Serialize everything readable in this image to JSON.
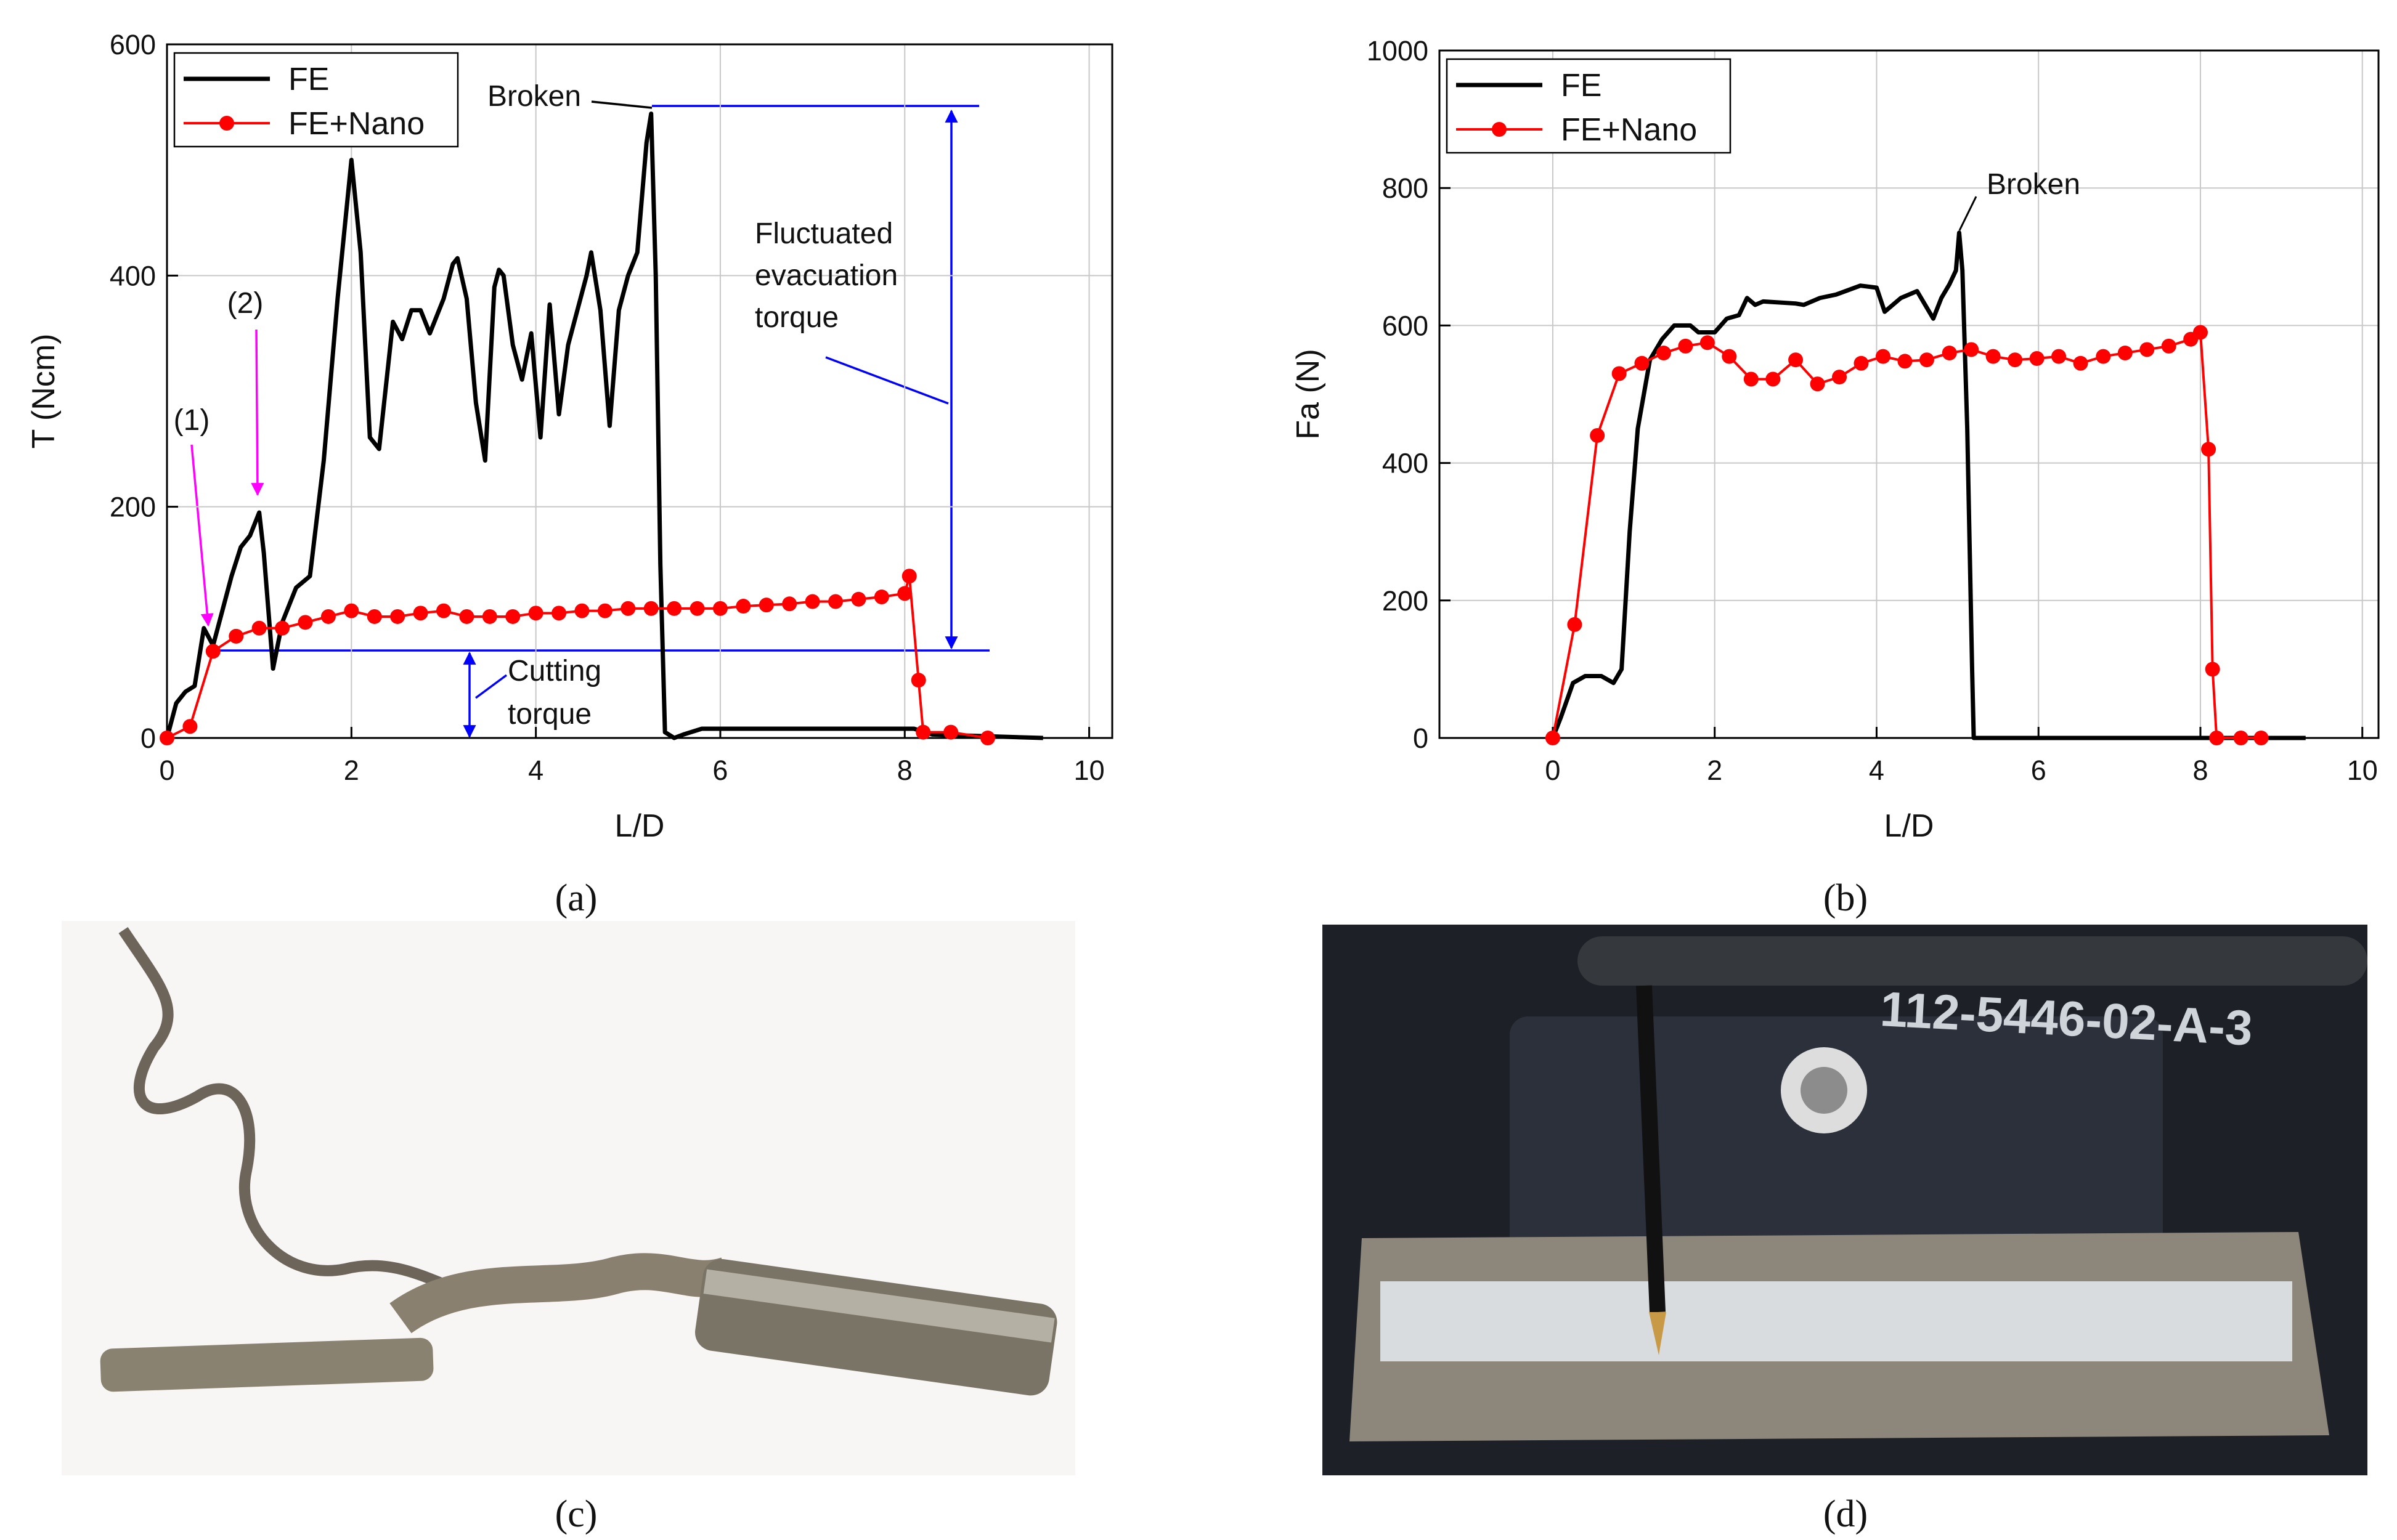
{
  "chart_data": [
    {
      "type": "line",
      "x_label": "L/D",
      "y_label": "T (Ncm)",
      "xlim": [
        0,
        10.25
      ],
      "xticks": [
        0,
        2,
        4,
        6,
        8,
        10
      ],
      "ylim": [
        0,
        600
      ],
      "yticks": [
        0,
        200,
        400,
        600
      ],
      "grid": true,
      "legend": "upper left",
      "annotations": [
        [
          "Broken"
        ],
        [
          "Fluctuated",
          "evacuation",
          "torque"
        ],
        [
          "Cutting",
          "torque"
        ],
        [
          "(1)"
        ],
        [
          "(2)"
        ]
      ],
      "series": [
        {
          "name": "FE",
          "color": "#000000",
          "marker": false,
          "x": [
            0,
            0.1,
            0.2,
            0.3,
            0.4,
            0.5,
            0.6,
            0.7,
            0.8,
            0.9,
            1.0,
            1.05,
            1.15,
            1.25,
            1.4,
            1.55,
            1.7,
            1.85,
            2.0,
            2.1,
            2.2,
            2.3,
            2.45,
            2.55,
            2.65,
            2.75,
            2.85,
            3.0,
            3.1,
            3.15,
            3.25,
            3.35,
            3.45,
            3.55,
            3.6,
            3.65,
            3.75,
            3.85,
            3.95,
            4.05,
            4.15,
            4.25,
            4.35,
            4.45,
            4.55,
            4.6,
            4.7,
            4.8,
            4.9,
            5.0,
            5.1,
            5.2,
            5.25,
            5.3,
            5.35,
            5.4,
            5.5,
            5.6,
            5.8,
            6,
            8.1,
            8.3,
            9.5
          ],
          "values": [
            0,
            30,
            40,
            45,
            95,
            80,
            110,
            140,
            165,
            175,
            195,
            160,
            60,
            100,
            130,
            140,
            240,
            380,
            500,
            420,
            260,
            250,
            360,
            345,
            370,
            370,
            350,
            380,
            410,
            415,
            380,
            290,
            240,
            390,
            405,
            400,
            340,
            310,
            350,
            260,
            375,
            280,
            340,
            370,
            400,
            420,
            370,
            270,
            370,
            400,
            420,
            515,
            540,
            400,
            150,
            5,
            0,
            3,
            8,
            8,
            8,
            3,
            0
          ]
        },
        {
          "name": "FE+Nano",
          "color": "#ff0000",
          "marker": true,
          "x": [
            0,
            0.25,
            0.5,
            0.75,
            1,
            1.25,
            1.5,
            1.75,
            2,
            2.25,
            2.5,
            2.75,
            3,
            3.25,
            3.5,
            3.75,
            4,
            4.25,
            4.5,
            4.75,
            5,
            5.25,
            5.5,
            5.75,
            6,
            6.25,
            6.5,
            6.75,
            7,
            7.25,
            7.5,
            7.75,
            8,
            8.05,
            8.15,
            8.2,
            8.5,
            8.9
          ],
          "values": [
            0,
            10,
            75,
            88,
            95,
            95,
            100,
            105,
            110,
            105,
            105,
            108,
            110,
            105,
            105,
            105,
            108,
            108,
            110,
            110,
            112,
            112,
            112,
            112,
            112,
            114,
            115,
            116,
            118,
            118,
            120,
            122,
            125,
            140,
            50,
            5,
            5,
            0
          ]
        }
      ]
    },
    {
      "type": "line",
      "x_label": "L/D",
      "y_label": "Fa (N)",
      "xlim": [
        -1.4,
        10.2
      ],
      "xticks": [
        0,
        2,
        4,
        6,
        8,
        10
      ],
      "ylim": [
        0,
        1000
      ],
      "yticks": [
        0,
        200,
        400,
        600,
        800,
        1000
      ],
      "grid": true,
      "legend": "upper left",
      "annotations": [
        [
          "Broken"
        ]
      ],
      "series": [
        {
          "name": "FE",
          "color": "#000000",
          "marker": false,
          "x": [
            0,
            0.1,
            0.25,
            0.4,
            0.6,
            0.75,
            0.85,
            0.95,
            1.05,
            1.2,
            1.35,
            1.5,
            1.7,
            1.8,
            2,
            2.15,
            2.3,
            2.4,
            2.5,
            2.6,
            3,
            3.1,
            3.3,
            3.5,
            3.8,
            4,
            4.1,
            4.3,
            4.5,
            4.6,
            4.7,
            4.8,
            4.9,
            4.98,
            5.02,
            5.06,
            5.12,
            5.18,
            5.2,
            9.3
          ],
          "values": [
            0,
            30,
            80,
            90,
            90,
            80,
            100,
            300,
            450,
            550,
            580,
            600,
            600,
            590,
            590,
            610,
            615,
            640,
            630,
            635,
            632,
            630,
            640,
            645,
            658,
            655,
            620,
            640,
            650,
            630,
            610,
            640,
            660,
            680,
            735,
            680,
            450,
            100,
            0,
            0
          ]
        },
        {
          "name": "FE+Nano",
          "color": "#ff0000",
          "marker": true,
          "x": [
            0,
            0.27,
            0.55,
            0.82,
            1.1,
            1.37,
            1.64,
            1.91,
            2.18,
            2.45,
            2.72,
            3.0,
            3.27,
            3.54,
            3.81,
            4.08,
            4.35,
            4.62,
            4.9,
            5.17,
            5.44,
            5.71,
            5.98,
            6.25,
            6.52,
            6.8,
            7.07,
            7.34,
            7.61,
            7.88,
            8.0,
            8.1,
            8.15,
            8.2,
            8.5,
            8.75
          ],
          "values": [
            0,
            165,
            440,
            530,
            545,
            560,
            570,
            575,
            555,
            522,
            522,
            550,
            515,
            525,
            545,
            555,
            548,
            550,
            560,
            565,
            555,
            550,
            552,
            555,
            545,
            555,
            560,
            565,
            570,
            580,
            590,
            420,
            100,
            0,
            0,
            0
          ]
        }
      ]
    }
  ],
  "captions": [
    "(a)",
    "(b)",
    "(c)",
    "(d)"
  ],
  "photo_text": "112-5446-02-A-3"
}
